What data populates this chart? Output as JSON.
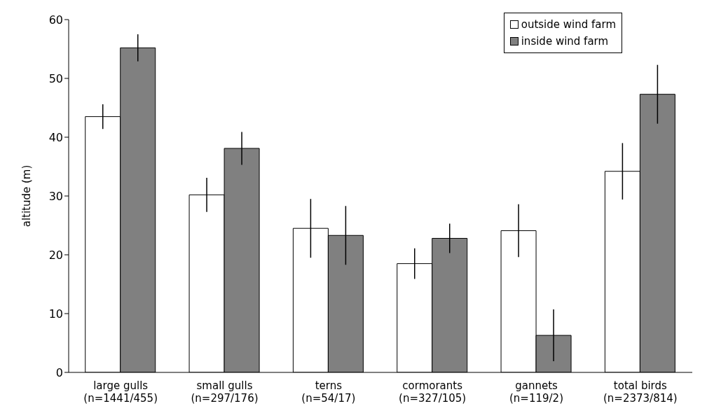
{
  "chart_data": {
    "type": "bar",
    "ylabel": "altitude (m)",
    "categories": [
      "large gulls\n(n=1441/455)",
      "small gulls\n(n=297/176)",
      "terns\n(n=54/17)",
      "cormorants\n(n=327/105)",
      "gannets\n(n=119/2)",
      "total birds\n(n=2373/814)"
    ],
    "series": [
      {
        "name": "outside wind farm",
        "color": "#ffffff",
        "values": [
          43.5,
          30.2,
          24.5,
          18.5,
          24.1,
          34.2
        ],
        "errors": [
          2.1,
          2.9,
          5,
          2.6,
          4.5,
          4.8
        ]
      },
      {
        "name": "inside wind farm",
        "color": "#808080",
        "values": [
          55.2,
          38.1,
          23.3,
          22.8,
          6.3,
          47.3
        ],
        "errors": [
          2.3,
          2.8,
          5,
          2.5,
          4.4,
          5
        ]
      }
    ],
    "ylim": [
      0,
      60
    ],
    "yticks": [
      0,
      10,
      20,
      30,
      40,
      50,
      60
    ],
    "legend": "top right",
    "grid": false
  }
}
